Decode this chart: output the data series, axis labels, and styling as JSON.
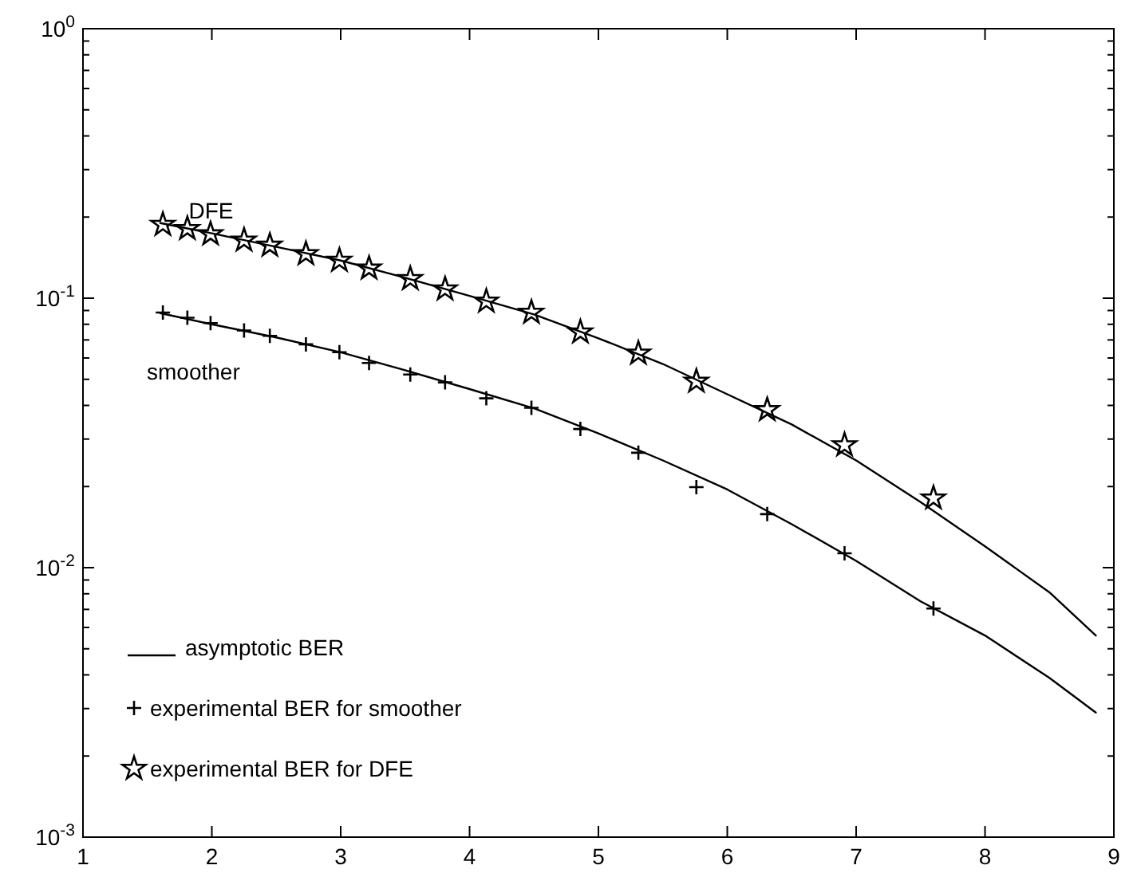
{
  "chart_data": {
    "type": "line",
    "log": true,
    "legend": "bottom left",
    "xlim": [
      1,
      9
    ],
    "xticks": [
      1,
      2,
      3,
      4,
      5,
      6,
      7,
      8,
      9
    ],
    "ylim": [
      0.001,
      1
    ],
    "yticks": [
      {
        "value": 0.001,
        "label": "10$^{-3}$"
      },
      {
        "value": 0.002,
        "label": null
      },
      {
        "value": 0.003,
        "label": null
      },
      {
        "value": 0.004,
        "label": null
      },
      {
        "value": 0.005,
        "label": null
      },
      {
        "value": 0.006,
        "label": null
      },
      {
        "value": 0.007,
        "label": null
      },
      {
        "value": 0.008,
        "label": null
      },
      {
        "value": 0.009,
        "label": null
      },
      {
        "value": 0.01,
        "label": "10$^{-2}$"
      },
      {
        "value": 0.02,
        "label": null
      },
      {
        "value": 0.03,
        "label": null
      },
      {
        "value": 0.04,
        "label": null
      },
      {
        "value": 0.05,
        "label": null
      },
      {
        "value": 0.06,
        "label": null
      },
      {
        "value": 0.07,
        "label": null
      },
      {
        "value": 0.08,
        "label": null
      },
      {
        "value": 0.09,
        "label": null
      },
      {
        "value": 0.1,
        "label": "10$^{-1}$"
      },
      {
        "value": 0.2,
        "label": null
      },
      {
        "value": 0.3,
        "label": null
      },
      {
        "value": 0.4,
        "label": null
      },
      {
        "value": 0.5,
        "label": null
      },
      {
        "value": 0.6,
        "label": null
      },
      {
        "value": 0.7,
        "label": null
      },
      {
        "value": 0.8,
        "label": null
      },
      {
        "value": 0.9,
        "label": null
      },
      {
        "value": 1,
        "label": "10$^{0}$"
      }
    ],
    "annotations": [
      {
        "text": "DFE",
        "x": 1.82,
        "y": 0.197
      },
      "smoother"
    ],
    "series": [
      {
        "name": "asymptotic BER",
        "marker": "none",
        "line_style": "solid",
        "color": "#000000",
        "x": [
          1.6,
          2,
          2.5,
          3,
          3.5,
          4,
          4.5,
          5,
          5.5,
          6,
          6.5,
          7,
          7.5,
          8,
          8.5,
          8.86
        ],
        "values": [
          0.19,
          0.174,
          0.155,
          0.138,
          0.119,
          0.102,
          0.087,
          0.071,
          0.057,
          0.044,
          0.034,
          0.025,
          0.0175,
          0.012,
          0.0081,
          0.0056
        ]
      },
      {
        "marker": "none",
        "line_style": "solid",
        "color": "#000000",
        "x": [
          1.6,
          2,
          2.5,
          3,
          3.5,
          4,
          4.5,
          5,
          5.5,
          6,
          6.5,
          7,
          7.5,
          8,
          8.5,
          8.86
        ],
        "values": [
          0.088,
          0.08,
          0.0715,
          0.063,
          0.054,
          0.046,
          0.039,
          0.0315,
          0.025,
          0.0195,
          0.0145,
          0.0106,
          0.0075,
          0.0056,
          0.0039,
          0.0029
        ]
      },
      {
        "name": "experimental BER for smoother",
        "type": "scatter",
        "marker": "cross",
        "color": "#000000",
        "x": [
          1.62,
          1.81,
          1.99,
          2.25,
          2.45,
          2.73,
          2.99,
          3.22,
          3.54,
          3.81,
          4.13,
          4.48,
          4.86,
          5.31,
          5.76,
          6.31,
          6.91,
          7.6
        ],
        "values": [
          0.0885,
          0.0846,
          0.0808,
          0.0759,
          0.0725,
          0.0674,
          0.063,
          0.0575,
          0.0521,
          0.0487,
          0.0425,
          0.0392,
          0.0327,
          0.0267,
          0.0199,
          0.0158,
          0.0113,
          0.00705
        ]
      },
      {
        "name": "experimental BER for DFE",
        "type": "scatter",
        "marker": "star",
        "color": "#000000",
        "x": [
          1.62,
          1.81,
          1.99,
          2.25,
          2.45,
          2.73,
          2.99,
          3.22,
          3.54,
          3.81,
          4.13,
          4.48,
          4.86,
          5.31,
          5.76,
          6.31,
          6.91,
          7.6
        ],
        "values": [
          0.1875,
          0.181,
          0.173,
          0.164,
          0.157,
          0.146,
          0.138,
          0.129,
          0.118,
          0.108,
          0.0973,
          0.0885,
          0.0748,
          0.0624,
          0.0491,
          0.0385,
          0.0285,
          0.0181
        ]
      }
    ]
  }
}
